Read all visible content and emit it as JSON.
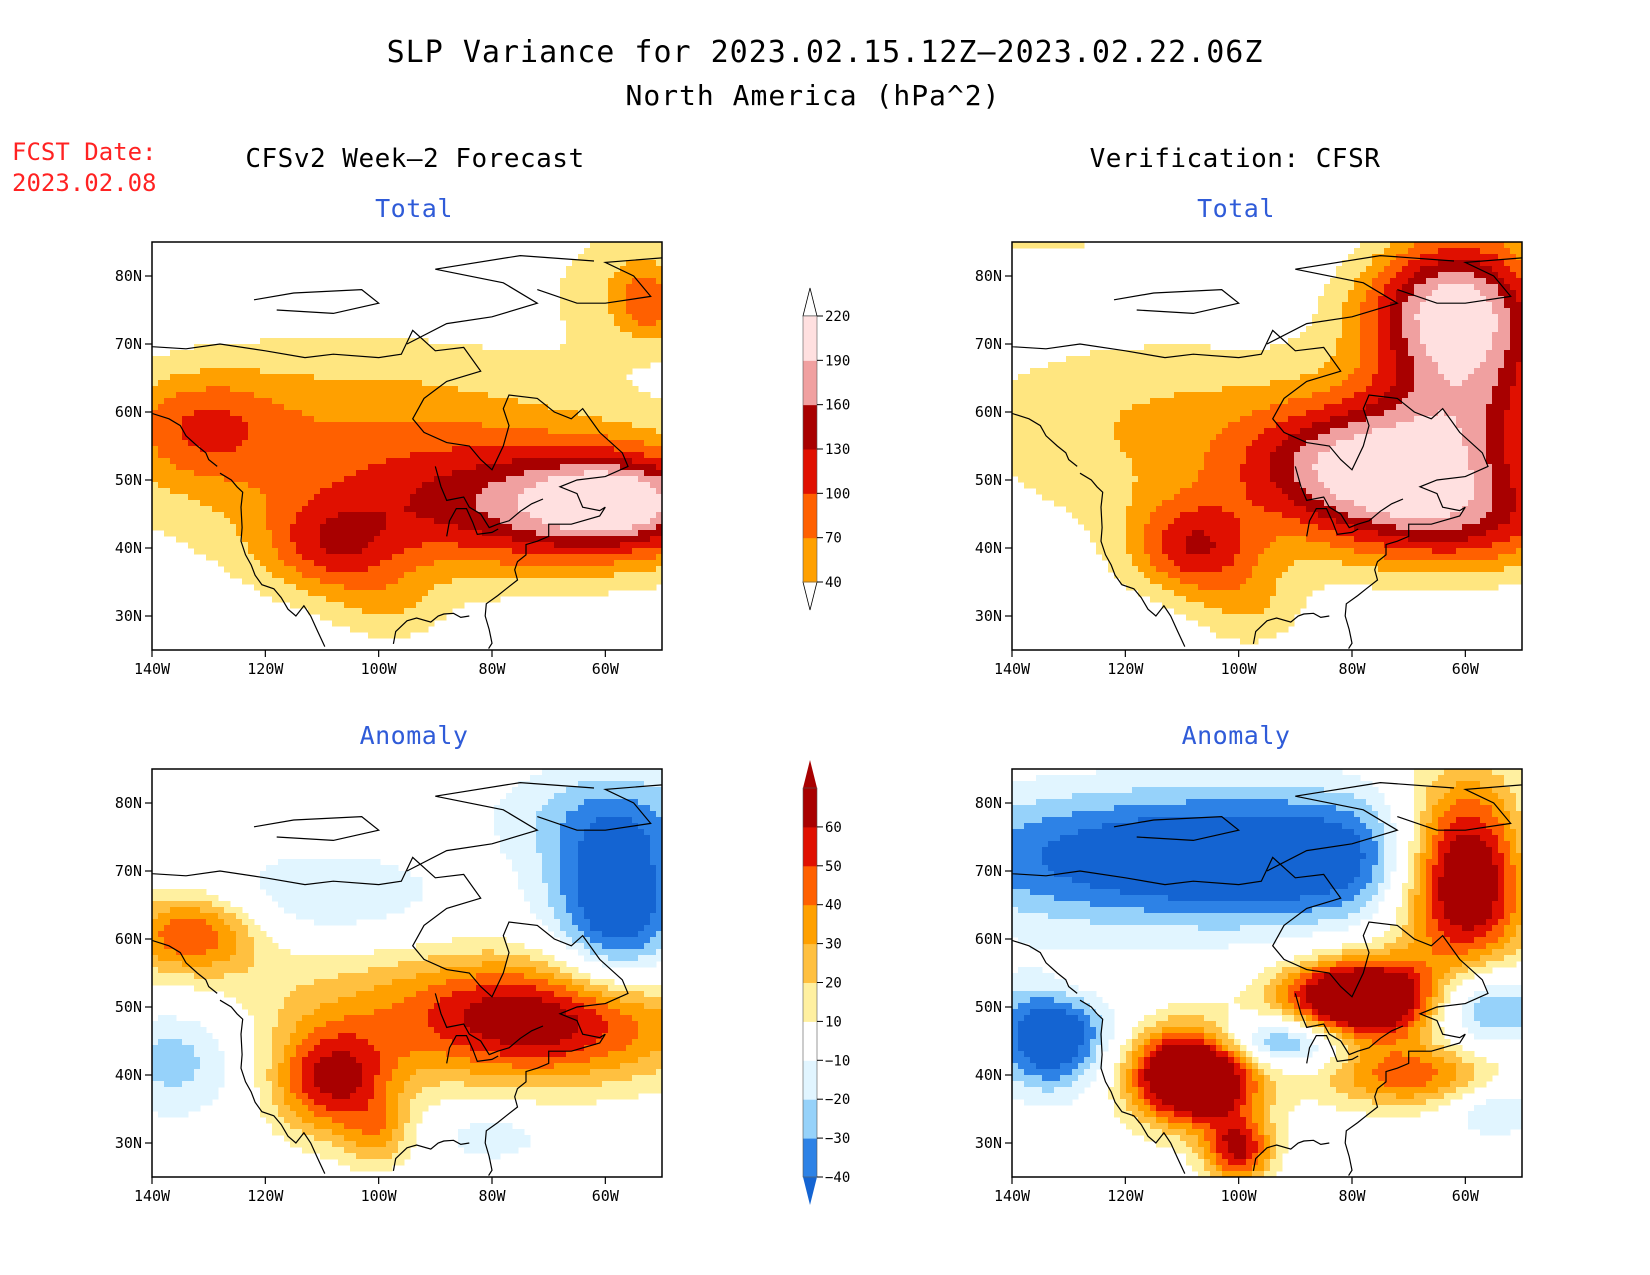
{
  "header": {
    "title": "SLP Variance for 2023.02.15.12Z–2023.02.22.06Z",
    "subtitle": "North America (hPa^2)",
    "fcst_label": "FCST Date:",
    "fcst_date": "2023.02.08",
    "left_column": "CFSv2 Week–2 Forecast",
    "right_column": "Verification: CFSR"
  },
  "colors": {
    "total": [
      "#ffffff",
      "#ffe680",
      "#ffa000",
      "#ff6000",
      "#e01000",
      "#a80000",
      "#f0a0a0",
      "#ffe0e0"
    ],
    "anomaly": [
      "#1464d2",
      "#2d82e6",
      "#96d2fa",
      "#e1f5ff",
      "#ffffff",
      "#fff0a0",
      "#ffc040",
      "#ffa000",
      "#ff6000",
      "#e01000",
      "#a80000"
    ]
  },
  "colorbars": {
    "total": {
      "labels": [
        "40",
        "70",
        "100",
        "130",
        "160",
        "190",
        "220"
      ]
    },
    "anomaly": {
      "labels": [
        "−40",
        "−30",
        "−20",
        "−10",
        "10",
        "20",
        "30",
        "40",
        "50",
        "60"
      ]
    }
  },
  "chart_data": [
    {
      "type": "heatmap",
      "id": "forecast_total",
      "title": "Total",
      "x_ticks": [
        "140W",
        "120W",
        "100W",
        "80W",
        "60W"
      ],
      "y_ticks": [
        "30N",
        "40N",
        "50N",
        "60N",
        "70N",
        "80N"
      ],
      "xlim": [
        -140,
        -50
      ],
      "ylim": [
        25,
        85
      ],
      "blobs": [
        {
          "lon": -88,
          "lat": 53,
          "rx": 50,
          "ry": 19,
          "v": 60
        },
        {
          "lon": -110,
          "lat": 49,
          "rx": 48,
          "ry": 17,
          "v": 30
        },
        {
          "lon": -115,
          "lat": 60,
          "rx": 35,
          "ry": 14,
          "v": 25
        },
        {
          "lon": -132,
          "lat": 58,
          "rx": 14,
          "ry": 8,
          "v": 75
        },
        {
          "lon": -108,
          "lat": 40,
          "rx": 12,
          "ry": 7,
          "v": 90
        },
        {
          "lon": -98,
          "lat": 31,
          "rx": 10,
          "ry": 6,
          "v": 40
        },
        {
          "lon": -65,
          "lat": 46,
          "rx": 32,
          "ry": 9,
          "v": 150
        },
        {
          "lon": -58,
          "lat": 47,
          "rx": 13,
          "ry": 6,
          "v": 95
        },
        {
          "lon": -58,
          "lat": 80,
          "rx": 14,
          "ry": 10,
          "v": 50
        },
        {
          "lon": -52,
          "lat": 76,
          "rx": 6,
          "ry": 6,
          "v": 80
        }
      ]
    },
    {
      "type": "heatmap",
      "id": "verification_total",
      "title": "Total",
      "x_ticks": [
        "140W",
        "120W",
        "100W",
        "80W",
        "60W"
      ],
      "y_ticks": [
        "30N",
        "40N",
        "50N",
        "60N",
        "70N",
        "80N"
      ],
      "xlim": [
        -140,
        -50
      ],
      "ylim": [
        25,
        85
      ],
      "blobs": [
        {
          "lon": -95,
          "lat": 52,
          "rx": 55,
          "ry": 18,
          "v": 60
        },
        {
          "lon": -120,
          "lat": 62,
          "rx": 35,
          "ry": 12,
          "v": 30
        },
        {
          "lon": -108,
          "lat": 40,
          "rx": 11,
          "ry": 7,
          "v": 120
        },
        {
          "lon": -78,
          "lat": 52,
          "rx": 20,
          "ry": 9,
          "v": 170
        },
        {
          "lon": -60,
          "lat": 44,
          "rx": 22,
          "ry": 8,
          "v": 110
        },
        {
          "lon": -60,
          "lat": 70,
          "rx": 16,
          "ry": 18,
          "v": 190
        },
        {
          "lon": -65,
          "lat": 76,
          "rx": 16,
          "ry": 8,
          "v": 80
        },
        {
          "lon": -98,
          "lat": 31,
          "rx": 10,
          "ry": 7,
          "v": 50
        },
        {
          "lon": -135,
          "lat": 86,
          "rx": 20,
          "ry": 3,
          "v": 55
        }
      ]
    },
    {
      "type": "heatmap",
      "id": "forecast_anomaly",
      "title": "Anomaly",
      "x_ticks": [
        "140W",
        "120W",
        "100W",
        "80W",
        "60W"
      ],
      "y_ticks": [
        "30N",
        "40N",
        "50N",
        "60N",
        "70N",
        "80N"
      ],
      "xlim": [
        -140,
        -50
      ],
      "ylim": [
        25,
        85
      ],
      "blobs": [
        {
          "lon": -70,
          "lat": 48,
          "rx": 28,
          "ry": 9,
          "v": 70
        },
        {
          "lon": -108,
          "lat": 39,
          "rx": 11,
          "ry": 8,
          "v": 60
        },
        {
          "lon": -133,
          "lat": 61,
          "rx": 12,
          "ry": 6,
          "v": 48
        },
        {
          "lon": -100,
          "lat": 31,
          "rx": 6,
          "ry": 5,
          "v": 25
        },
        {
          "lon": -112,
          "lat": 52,
          "rx": 40,
          "ry": 10,
          "v": 14
        },
        {
          "lon": -58,
          "lat": 64,
          "rx": 12,
          "ry": 14,
          "v": -55
        },
        {
          "lon": -60,
          "lat": 78,
          "rx": 22,
          "ry": 8,
          "v": -20
        },
        {
          "lon": -136,
          "lat": 43,
          "rx": 13,
          "ry": 9,
          "v": -28
        },
        {
          "lon": -110,
          "lat": 66,
          "rx": 22,
          "ry": 7,
          "v": -22
        },
        {
          "lon": -80,
          "lat": 31,
          "rx": 10,
          "ry": 4,
          "v": -18
        }
      ]
    },
    {
      "type": "heatmap",
      "id": "verification_anomaly",
      "title": "Anomaly",
      "x_ticks": [
        "140W",
        "120W",
        "100W",
        "80W",
        "60W"
      ],
      "y_ticks": [
        "30N",
        "40N",
        "50N",
        "60N",
        "70N",
        "80N"
      ],
      "xlim": [
        -140,
        -50
      ],
      "ylim": [
        25,
        85
      ],
      "blobs": [
        {
          "lon": -100,
          "lat": 72,
          "rx": 55,
          "ry": 10,
          "v": -60
        },
        {
          "lon": -60,
          "lat": 70,
          "rx": 12,
          "ry": 13,
          "v": 110
        },
        {
          "lon": -78,
          "lat": 51,
          "rx": 14,
          "ry": 6,
          "v": 110
        },
        {
          "lon": -108,
          "lat": 40,
          "rx": 11,
          "ry": 7,
          "v": 110
        },
        {
          "lon": -100,
          "lat": 29,
          "rx": 6,
          "ry": 5,
          "v": 60
        },
        {
          "lon": -70,
          "lat": 40,
          "rx": 16,
          "ry": 5,
          "v": 45
        },
        {
          "lon": -133,
          "lat": 46,
          "rx": 10,
          "ry": 8,
          "v": -60
        },
        {
          "lon": -92,
          "lat": 45,
          "rx": 13,
          "ry": 4,
          "v": -50
        },
        {
          "lon": -58,
          "lat": 50,
          "rx": 12,
          "ry": 6,
          "v": -45
        },
        {
          "lon": -55,
          "lat": 35,
          "rx": 8,
          "ry": 4,
          "v": -25
        },
        {
          "lon": -130,
          "lat": 53,
          "rx": 8,
          "ry": 4,
          "v": 15
        }
      ]
    }
  ]
}
